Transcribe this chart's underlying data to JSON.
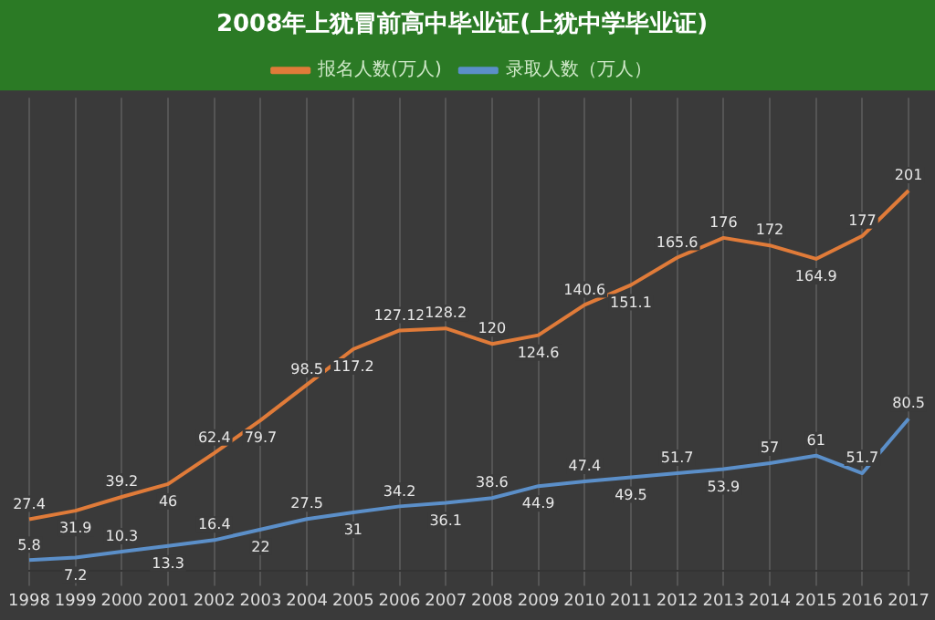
{
  "chart_data": {
    "type": "line",
    "title": "2008年上犹冒前高中毕业证(上犹中学毕业证)",
    "categories": [
      "1998",
      "1999",
      "2000",
      "2001",
      "2002",
      "2003",
      "2004",
      "2005",
      "2006",
      "2007",
      "2008",
      "2009",
      "2010",
      "2011",
      "2012",
      "2013",
      "2014",
      "2015",
      "2016",
      "2017"
    ],
    "series": [
      {
        "name": "报名人数(万人)",
        "color": "#e07b39",
        "values": [
          27.4,
          31.9,
          39.2,
          46,
          62.4,
          79.7,
          98.5,
          117.2,
          127.12,
          128.2,
          120,
          124.6,
          140.6,
          151.1,
          165.6,
          176,
          172,
          164.9,
          177,
          201
        ]
      },
      {
        "name": "录取人数（万人）",
        "color": "#5b8fc9",
        "values": [
          5.8,
          7.2,
          10.3,
          13.3,
          16.4,
          22,
          27.5,
          31,
          34.2,
          36.1,
          38.6,
          44.9,
          47.4,
          49.5,
          51.7,
          53.9,
          57,
          61,
          51.7,
          80.5
        ]
      }
    ],
    "data_labels": true,
    "grid": "x",
    "legend": "top",
    "marker": "none",
    "line_style": "solid"
  }
}
